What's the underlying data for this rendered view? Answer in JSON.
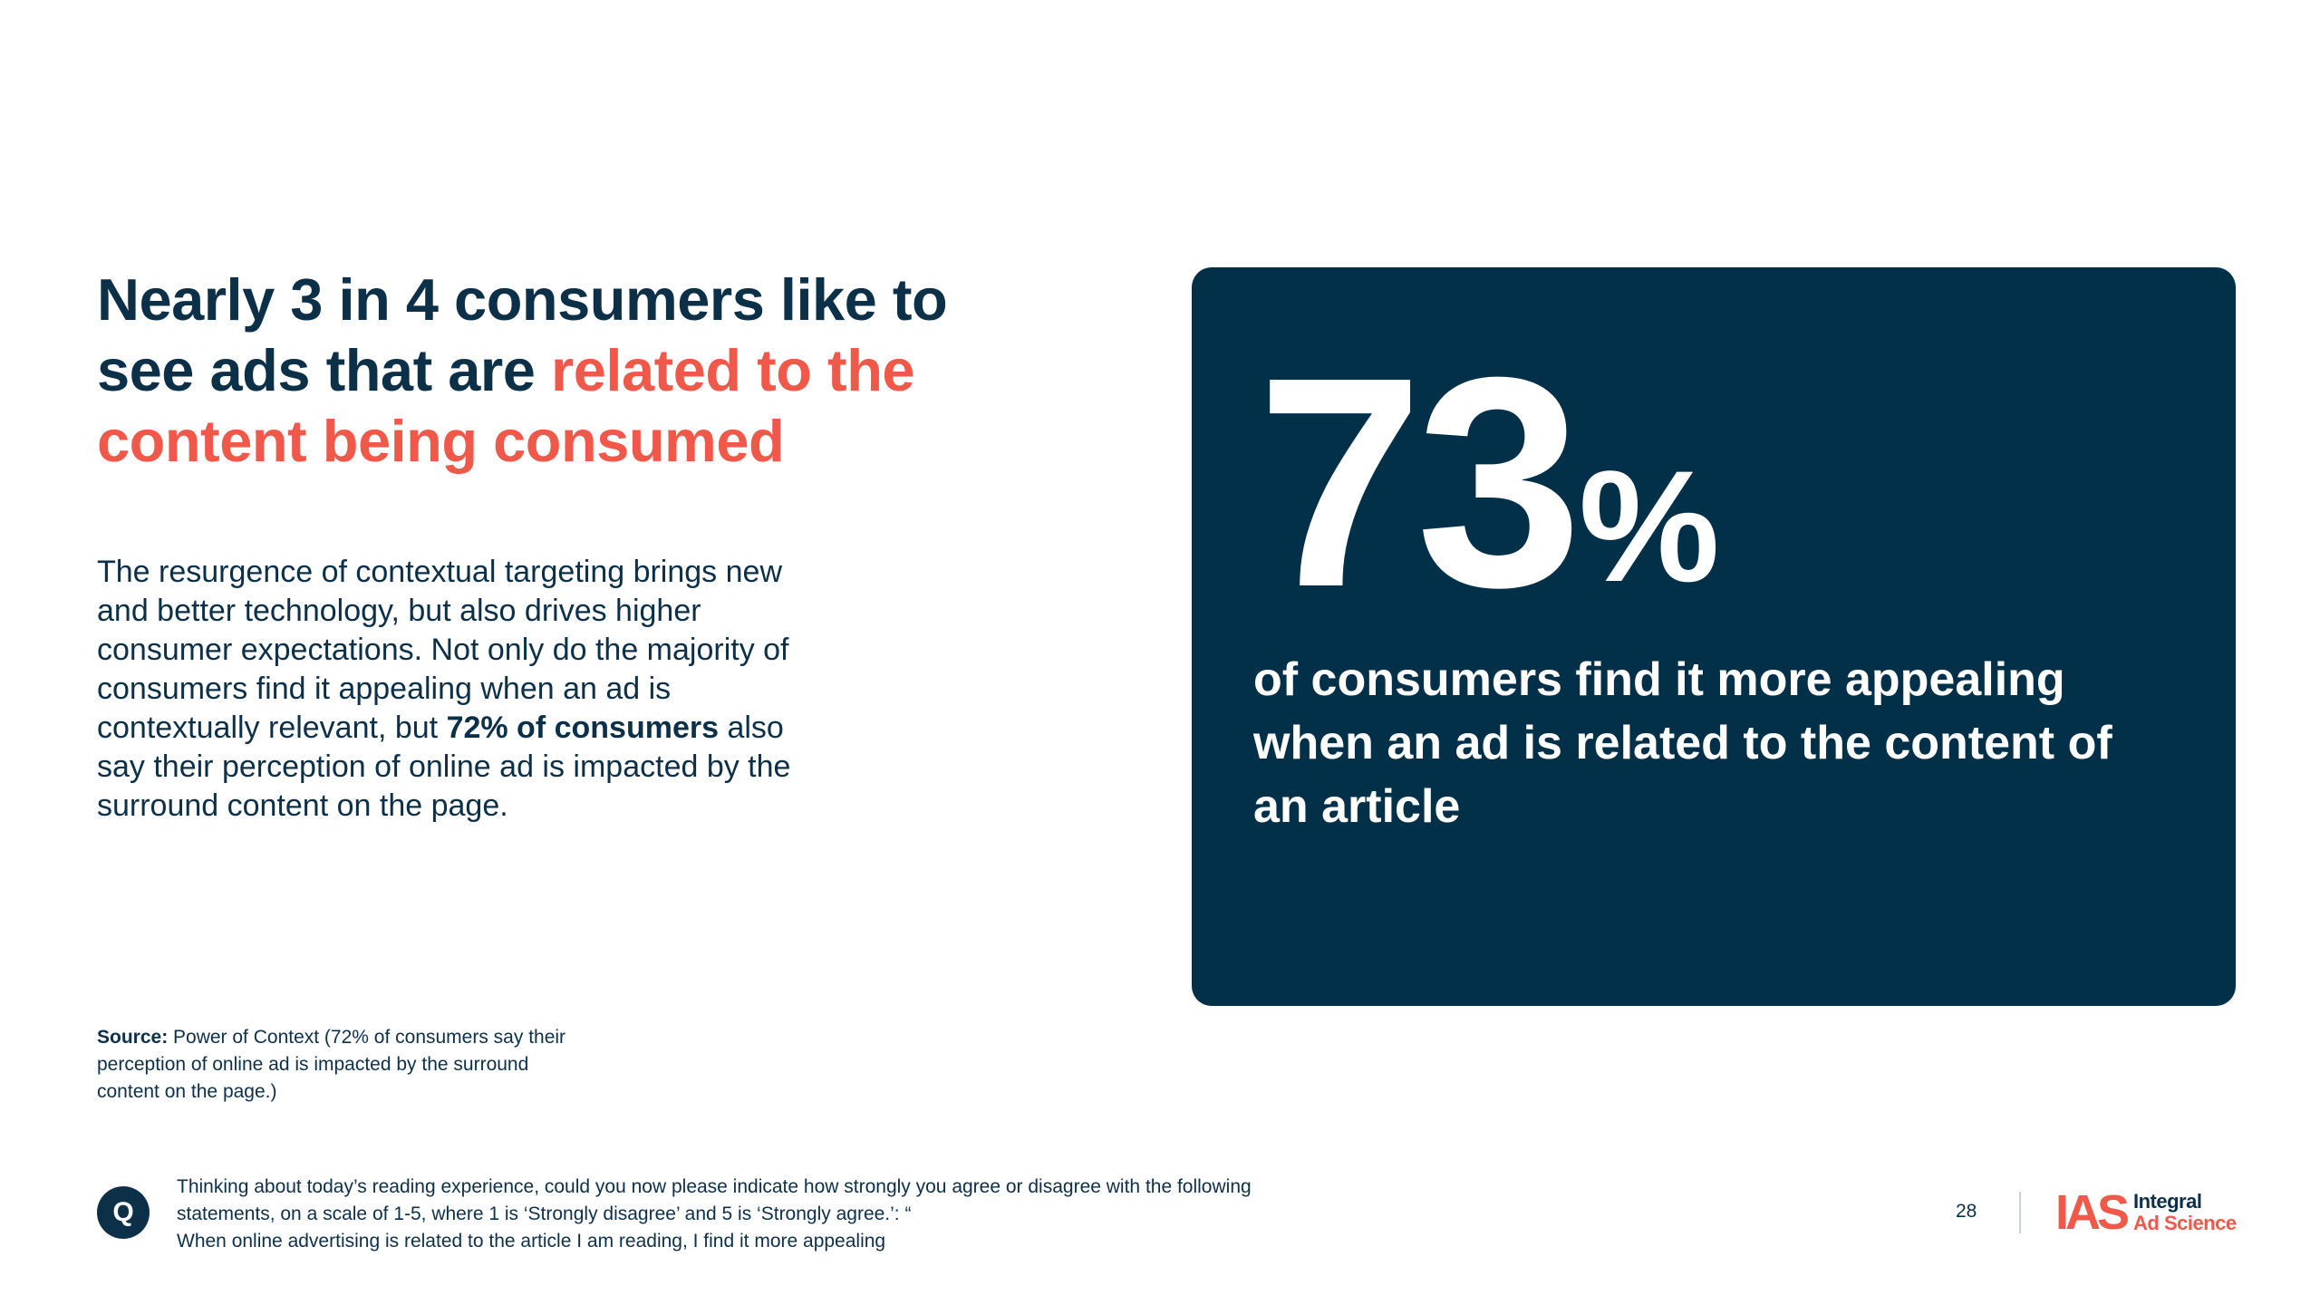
{
  "headline": {
    "part1": "Nearly 3 in 4 consumers like to see ads that are ",
    "part2": "related to the content being consumed"
  },
  "body": {
    "text1": "The resurgence of contextual targeting brings new and better technology, but also drives higher consumer expectations. Not only do the majority of consumers find it appealing when an ad is contextually relevant, but ",
    "bold": "72% of consumers",
    "text2": " also say their perception of online ad is impacted by the surround content on the page."
  },
  "source": {
    "label": "Source:",
    "text": " Power of Context (72% of consumers say their perception of online ad is impacted by the surround content on the page.)"
  },
  "stat": {
    "number": "73",
    "unit": "%",
    "description": "of consumers find it more appealing when an ad is related to the content of an article"
  },
  "question": {
    "badge": "Q",
    "line1": "Thinking about today’s reading experience, could you now please indicate how strongly you agree or disagree with the following",
    "line2": "statements, on a scale of  1-5, where 1 is ‘Strongly disagree’ and 5 is ‘Strongly agree.’: “",
    "line3": "When online advertising is related to the article I am reading, I find it more appealing"
  },
  "footer": {
    "page_number": "28",
    "logo_mark": "IAS",
    "logo_line1": "Integral",
    "logo_line2": "Ad Science"
  },
  "colors": {
    "navy": "#0d3049",
    "card": "#023049",
    "accent": "#f0584a"
  }
}
